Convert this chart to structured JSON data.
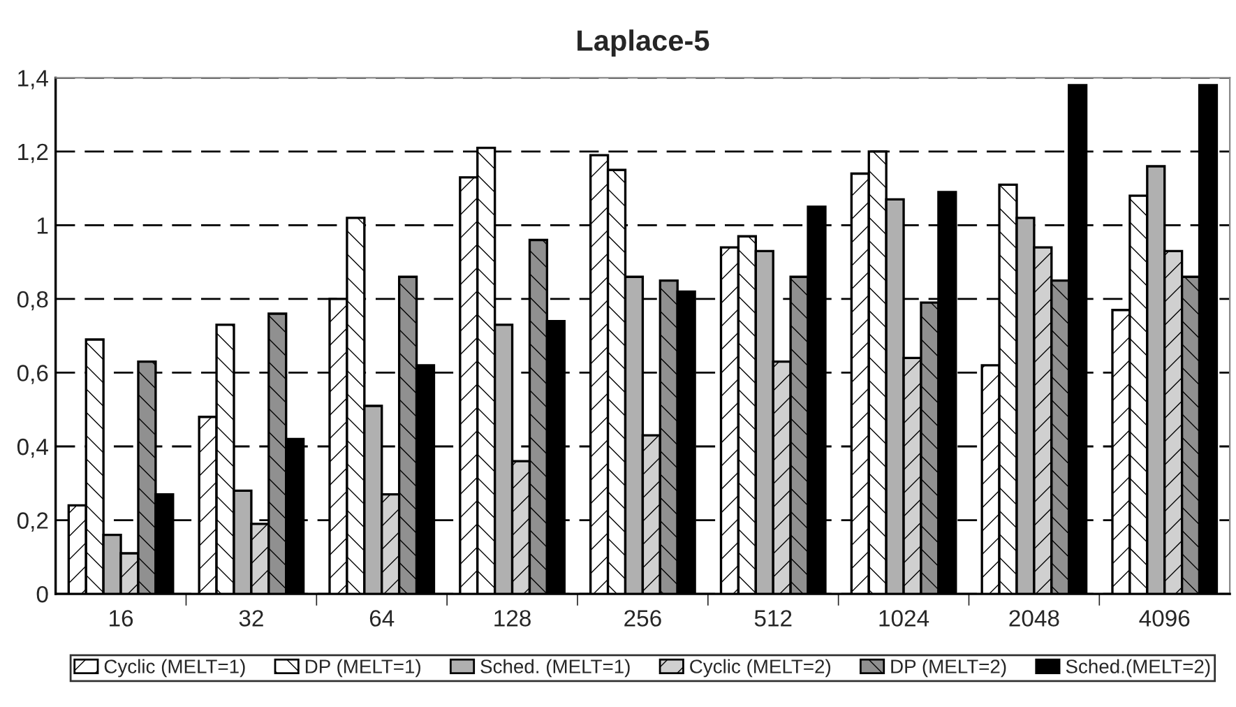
{
  "chart_data": {
    "type": "bar",
    "title": "Laplace-5",
    "categories": [
      "16",
      "32",
      "64",
      "128",
      "256",
      "512",
      "1024",
      "2048",
      "4096"
    ],
    "series": [
      {
        "name": "Cyclic (MELT=1)",
        "color": "#ffffff",
        "values": [
          0.24,
          0.48,
          0.8,
          1.13,
          1.19,
          0.94,
          1.14,
          0.62,
          0.77
        ]
      },
      {
        "name": "DP (MELT=1)",
        "color": "#ffffff",
        "values": [
          0.69,
          0.73,
          1.02,
          1.21,
          1.15,
          0.97,
          1.2,
          1.11,
          1.08
        ]
      },
      {
        "name": "Sched. (MELT=1)",
        "color": "#b0b0b0",
        "values": [
          0.16,
          0.28,
          0.51,
          0.73,
          0.86,
          0.93,
          1.07,
          1.02,
          1.16
        ]
      },
      {
        "name": "Cyclic (MELT=2)",
        "color": "#d0d0d0",
        "values": [
          0.11,
          0.19,
          0.27,
          0.36,
          0.43,
          0.63,
          0.64,
          0.94,
          0.93
        ]
      },
      {
        "name": "DP (MELT=2)",
        "color": "#909090",
        "values": [
          0.63,
          0.76,
          0.86,
          0.96,
          0.85,
          0.86,
          0.79,
          0.85,
          0.86
        ]
      },
      {
        "name": "Sched.(MELT=2)",
        "color": "#000000",
        "values": [
          0.27,
          0.42,
          0.62,
          0.74,
          0.82,
          1.05,
          1.09,
          1.38,
          1.38
        ]
      }
    ],
    "ylim": [
      0,
      1.4
    ],
    "yticks": [
      0,
      {
        "value": 0.2,
        "label": "0,2"
      },
      {
        "value": 0.4,
        "label": "0,4"
      },
      {
        "value": 0.6,
        "label": "0,6"
      },
      {
        "value": 0.8,
        "label": "0,8"
      },
      1,
      {
        "value": 1.2,
        "label": "1,2"
      },
      {
        "value": 1.4,
        "label": "1,4"
      }
    ],
    "grid": "y",
    "legend": "bottom"
  }
}
